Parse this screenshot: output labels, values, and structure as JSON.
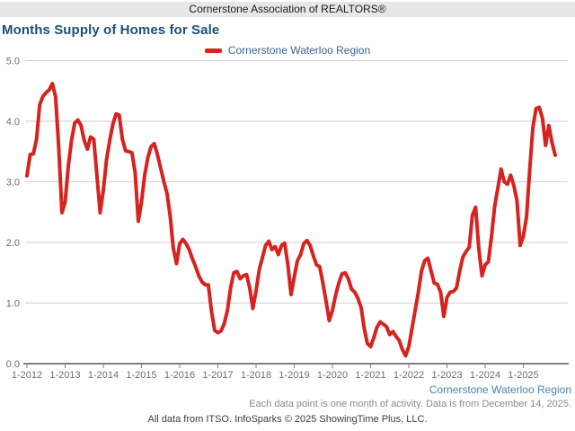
{
  "header": {
    "title": "Cornerstone Association of REALTORS®"
  },
  "page_title": "Months Supply of Homes for Sale",
  "legend": {
    "label": "Cornerstone Waterloo Region",
    "color": "#d7231f"
  },
  "footer": {
    "region_label": "Cornerstone Waterloo Region",
    "note": "Each data point is one month of activity. Data is from December 14, 2025.",
    "copyright": "All data from ITSO. InfoSparks © 2025 ShowingTime Plus, LLC."
  },
  "chart_data": {
    "type": "line",
    "title": "Months Supply of Homes for Sale",
    "ylabel": "",
    "xlabel": "",
    "ylim": [
      0,
      5
    ],
    "grid": "horizontal",
    "legend_position": "top-center",
    "y_tick_labels": [
      "5.0",
      "4.0",
      "3.0",
      "2.0",
      "1.0",
      "0.0"
    ],
    "x_tick_labels": [
      "1-2012",
      "1-2013",
      "1-2014",
      "1-2015",
      "1-2016",
      "1-2017",
      "1-2018",
      "1-2019",
      "1-2020",
      "1-2021",
      "1-2022",
      "1-2023",
      "1-2024",
      "1-2025"
    ],
    "series": [
      {
        "name": "Cornerstone Waterloo Region",
        "color": "#d7231f",
        "start": "2012-01",
        "frequency": "monthly",
        "values": [
          3.1,
          3.45,
          3.46,
          3.7,
          4.27,
          4.41,
          4.47,
          4.52,
          4.62,
          4.4,
          3.55,
          2.49,
          2.67,
          3.26,
          3.68,
          3.97,
          4.02,
          3.93,
          3.68,
          3.54,
          3.74,
          3.7,
          3.1,
          2.49,
          2.86,
          3.36,
          3.68,
          3.95,
          4.12,
          4.1,
          3.7,
          3.51,
          3.5,
          3.48,
          3.15,
          2.35,
          2.67,
          3.11,
          3.4,
          3.58,
          3.63,
          3.45,
          3.23,
          3.01,
          2.81,
          2.44,
          1.9,
          1.65,
          1.98,
          2.05,
          1.98,
          1.88,
          1.73,
          1.6,
          1.45,
          1.35,
          1.3,
          1.3,
          0.86,
          0.55,
          0.51,
          0.54,
          0.66,
          0.88,
          1.25,
          1.5,
          1.52,
          1.4,
          1.45,
          1.47,
          1.25,
          0.91,
          1.2,
          1.55,
          1.75,
          1.95,
          2.02,
          1.88,
          1.93,
          1.8,
          1.95,
          1.99,
          1.63,
          1.14,
          1.43,
          1.7,
          1.8,
          1.98,
          2.03,
          1.95,
          1.78,
          1.63,
          1.6,
          1.33,
          1.03,
          0.71,
          0.88,
          1.13,
          1.33,
          1.48,
          1.5,
          1.4,
          1.23,
          1.18,
          1.08,
          0.93,
          0.58,
          0.33,
          0.28,
          0.43,
          0.6,
          0.69,
          0.65,
          0.61,
          0.48,
          0.53,
          0.45,
          0.38,
          0.23,
          0.13,
          0.28,
          0.58,
          0.88,
          1.18,
          1.53,
          1.7,
          1.74,
          1.53,
          1.33,
          1.31,
          1.18,
          0.78,
          1.09,
          1.18,
          1.19,
          1.25,
          1.53,
          1.76,
          1.85,
          1.92,
          2.45,
          2.58,
          1.9,
          1.45,
          1.63,
          1.68,
          2.1,
          2.6,
          2.9,
          3.21,
          3.0,
          2.96,
          3.11,
          2.94,
          2.69,
          1.95,
          2.1,
          2.42,
          3.2,
          3.9,
          4.21,
          4.23,
          4.05,
          3.6,
          3.93,
          3.65,
          3.44
        ]
      }
    ]
  }
}
